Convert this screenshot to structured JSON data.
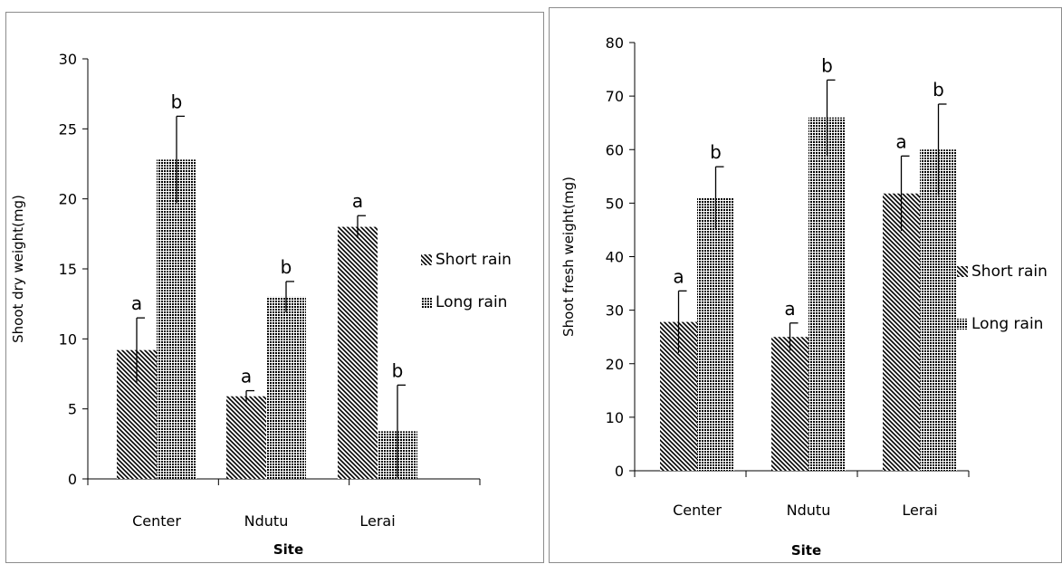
{
  "chart_data": [
    {
      "type": "bar",
      "title": "",
      "xlabel": "Site",
      "ylabel": "Shoot dry weight(mg)",
      "ylim": [
        0,
        30
      ],
      "yticks": [
        0,
        5,
        10,
        15,
        20,
        25,
        30
      ],
      "categories": [
        "Center",
        "Ndutu",
        "Lerai"
      ],
      "series": [
        {
          "name": "Short rain",
          "pattern": "diagonal",
          "values": [
            9.2,
            5.9,
            18.0
          ],
          "errors": [
            2.3,
            0.4,
            0.8
          ],
          "labels": [
            "a",
            "a",
            "a"
          ]
        },
        {
          "name": "Long rain",
          "pattern": "crosshatch",
          "values": [
            22.8,
            13.0,
            3.4
          ],
          "errors": [
            3.1,
            1.1,
            3.3
          ],
          "labels": [
            "b",
            "b",
            "b"
          ]
        }
      ],
      "legend_position": "right",
      "grid": false
    },
    {
      "type": "bar",
      "title": "",
      "xlabel": "Site",
      "ylabel": "Shoot fresh weight(mg)",
      "ylim": [
        0,
        80
      ],
      "yticks": [
        0,
        10,
        20,
        30,
        40,
        50,
        60,
        70,
        80
      ],
      "categories": [
        "Center",
        "Ndutu",
        "Lerai"
      ],
      "series": [
        {
          "name": "Short rain",
          "pattern": "diagonal",
          "values": [
            27.8,
            25.0,
            51.8
          ],
          "errors": [
            5.8,
            2.6,
            7.0
          ],
          "labels": [
            "a",
            "a",
            "a"
          ]
        },
        {
          "name": "Long rain",
          "pattern": "crosshatch",
          "values": [
            51.0,
            66.0,
            60.0
          ],
          "errors": [
            5.8,
            7.0,
            8.5
          ],
          "labels": [
            "b",
            "b",
            "b"
          ]
        }
      ],
      "legend_position": "right",
      "grid": false
    }
  ]
}
